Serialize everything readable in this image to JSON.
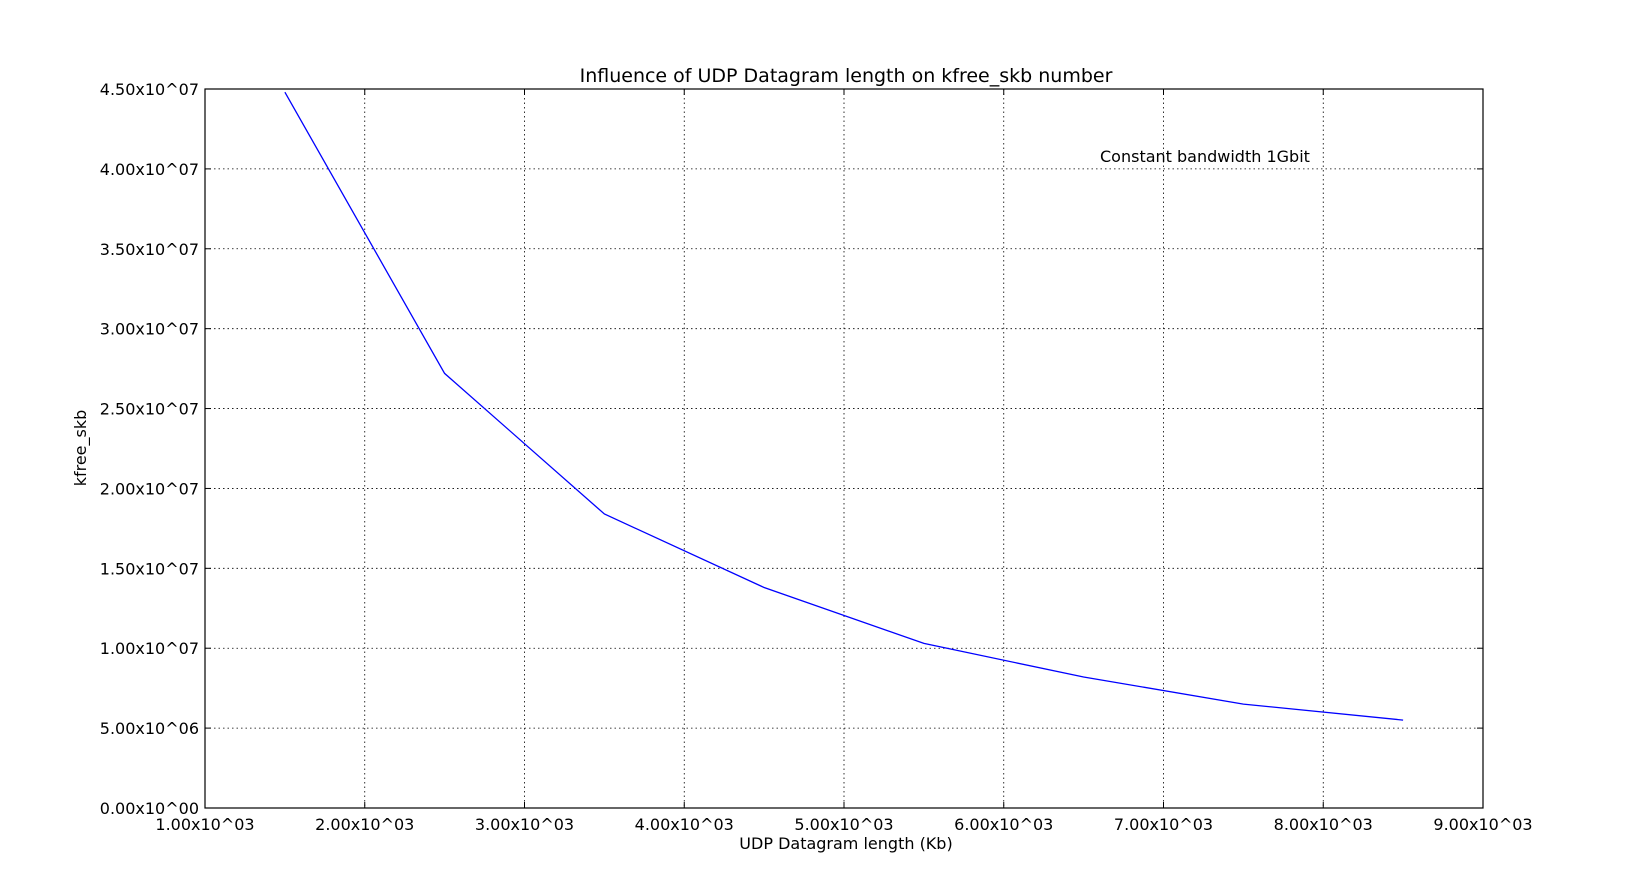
{
  "chart_data": {
    "type": "line",
    "title": "Influence of UDP Datagram length on kfree_skb number",
    "xlabel": "UDP Datagram length (Kb)",
    "ylabel": "kfree_skb",
    "xlim": [
      1000,
      9000
    ],
    "ylim": [
      0,
      45000000
    ],
    "x_ticks": [
      1000,
      2000,
      3000,
      4000,
      5000,
      6000,
      7000,
      8000,
      9000
    ],
    "x_tick_labels": [
      "1.00x10^03",
      "2.00x10^03",
      "3.00x10^03",
      "4.00x10^03",
      "5.00x10^03",
      "6.00x10^03",
      "7.00x10^03",
      "8.00x10^03",
      "9.00x10^03"
    ],
    "y_ticks": [
      0,
      5000000,
      10000000,
      15000000,
      20000000,
      25000000,
      30000000,
      35000000,
      40000000,
      45000000
    ],
    "y_tick_labels": [
      "0.00x10^00",
      "5.00x10^06",
      "1.00x10^07",
      "1.50x10^07",
      "2.00x10^07",
      "2.50x10^07",
      "3.00x10^07",
      "3.50x10^07",
      "4.00x10^07",
      "4.50x10^07"
    ],
    "grid": true,
    "annotation": "Constant bandwidth 1Gbit",
    "series": [
      {
        "color": "#0000ff",
        "x": [
          1500,
          2500,
          3500,
          4500,
          5500,
          6500,
          7500,
          8500
        ],
        "y": [
          44800000,
          27200000,
          18400000,
          13800000,
          10300000,
          8200000,
          6500000,
          5500000
        ]
      }
    ]
  }
}
